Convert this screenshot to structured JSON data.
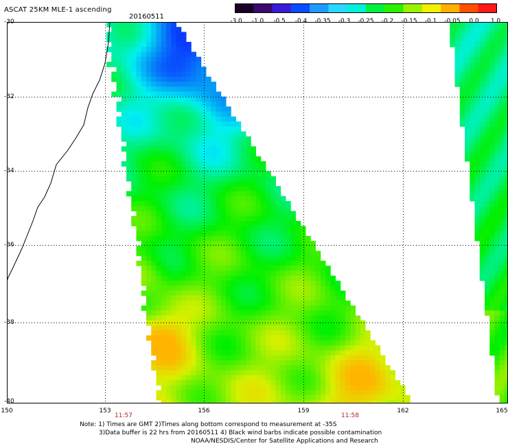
{
  "header": {
    "title": "ASCAT 25KM MLE-1 ascending",
    "date": "20160511"
  },
  "colorbar": {
    "labels": [
      "-3.0",
      "-1.0",
      "-0.5",
      "-0.4",
      "-0.35",
      "-0.3",
      "-0.25",
      "-0.2",
      "-0.15",
      "-0.1",
      "-0.05",
      "0.0",
      "1.0"
    ],
    "colors": [
      "#1a0026",
      "#3a0a6e",
      "#3b1bd6",
      "#0a4cff",
      "#1e9bff",
      "#28d9ff",
      "#00f0d8",
      "#00f040",
      "#2cf000",
      "#9cf000",
      "#f0f000",
      "#ffb000",
      "#ff5000",
      "#ff1a1a"
    ]
  },
  "map": {
    "lat_labels": [
      "-30",
      "-32",
      "-34",
      "-36",
      "-38",
      "-40"
    ],
    "lon_labels": [
      "150",
      "153",
      "156",
      "159",
      "162",
      "165"
    ],
    "time_labels": [
      "11:57",
      "11:58"
    ]
  },
  "footer": {
    "line1": "Note: 1) Times are GMT 2)Times along bottom correspond to measurement at -35S",
    "line2": "3)Data buffer is 22 hrs from 20160511 4) Black wind barbs indicate possible contamination",
    "line3": "NOAA/NESDIS/Center for Satellite Applications and Research"
  },
  "colors": {
    "low": "#0a3cff",
    "mid_low": "#00f0f0",
    "mid": "#00f000",
    "mid_high": "#d8f000",
    "high": "#ffb400",
    "coast": "#000000"
  }
}
